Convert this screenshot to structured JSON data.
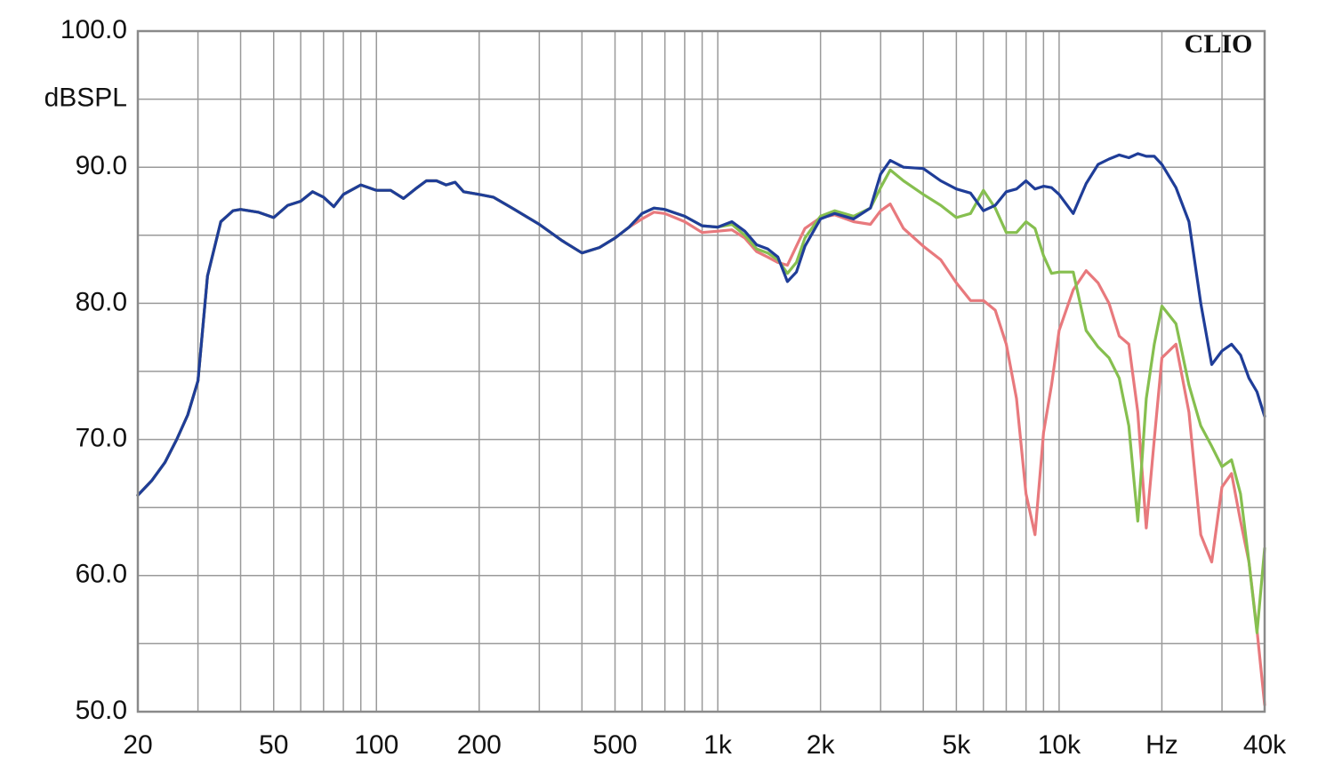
{
  "chart_data": {
    "type": "line",
    "annotation": "CLIO",
    "log_x": true,
    "grid": true,
    "xlim": [
      20,
      40000
    ],
    "xticks": [
      20,
      50,
      100,
      200,
      500,
      {
        "value": 1000,
        "label": "1k"
      },
      {
        "value": 2000,
        "label": "2k"
      },
      {
        "value": 5000,
        "label": "5k"
      },
      {
        "value": 10000,
        "label": "10k"
      },
      {
        "value": 20000,
        "label": "Hz"
      },
      {
        "value": 40000,
        "label": "40k"
      }
    ],
    "xgrid_minor": [
      30,
      40,
      60,
      70,
      80,
      90,
      300,
      400,
      600,
      700,
      800,
      900,
      3000,
      4000,
      6000,
      7000,
      8000,
      9000,
      30000
    ],
    "ylim": [
      50,
      100
    ],
    "yticks": [
      {
        "value": 100,
        "label": "100.0"
      },
      {
        "value": 95,
        "label": "dBSPL"
      },
      {
        "value": 90,
        "label": "90.0"
      },
      {
        "value": 80,
        "label": "80.0"
      },
      {
        "value": 70,
        "label": "70.0"
      },
      {
        "value": 60,
        "label": "60.0"
      },
      {
        "value": 50,
        "label": "50.0"
      }
    ],
    "ygrid_minor": [
      85,
      75,
      65,
      55
    ],
    "x": [
      20,
      22,
      24,
      26,
      28,
      30,
      32,
      35,
      38,
      40,
      45,
      50,
      55,
      60,
      65,
      70,
      75,
      80,
      90,
      100,
      110,
      120,
      130,
      140,
      150,
      160,
      170,
      180,
      200,
      220,
      250,
      300,
      350,
      400,
      450,
      500,
      550,
      600,
      650,
      700,
      800,
      900,
      1000,
      1100,
      1200,
      1300,
      1400,
      1500,
      1600,
      1700,
      1800,
      2000,
      2200,
      2500,
      2800,
      3000,
      3200,
      3500,
      4000,
      4500,
      5000,
      5500,
      6000,
      6500,
      7000,
      7500,
      8000,
      8500,
      9000,
      9500,
      10000,
      11000,
      12000,
      13000,
      14000,
      15000,
      16000,
      17000,
      18000,
      19000,
      20000,
      22000,
      24000,
      26000,
      28000,
      30000,
      32000,
      34000,
      36000,
      38000,
      40000
    ],
    "series": [
      {
        "color": "#e8797d",
        "values": [
          65.9,
          67.0,
          68.3,
          70.0,
          71.8,
          74.3,
          82.0,
          86.0,
          86.8,
          86.9,
          86.7,
          86.3,
          87.2,
          87.5,
          88.2,
          87.8,
          87.1,
          88.0,
          88.7,
          88.3,
          88.3,
          87.7,
          88.4,
          89.0,
          89.0,
          88.7,
          88.9,
          88.2,
          88.0,
          87.8,
          87.0,
          85.8,
          84.6,
          83.7,
          84.1,
          84.8,
          85.6,
          86.2,
          86.7,
          86.6,
          86.0,
          85.2,
          85.3,
          85.4,
          84.8,
          83.8,
          83.4,
          83.0,
          82.8,
          84.2,
          85.5,
          86.3,
          86.5,
          86.0,
          85.8,
          86.8,
          87.3,
          85.5,
          84.2,
          83.2,
          81.5,
          80.2,
          80.2,
          79.5,
          77.0,
          73.0,
          66.0,
          63.0,
          70.5,
          74.0,
          78.0,
          81.0,
          82.4,
          81.5,
          80.0,
          77.6,
          77.0,
          72.0,
          63.5,
          70.0,
          76.0,
          77.0,
          72.0,
          63.0,
          61.0,
          66.5,
          67.5,
          64.0,
          61.0,
          56.0,
          50.5
        ]
      },
      {
        "color": "#86bf4f",
        "values": [
          65.9,
          67.0,
          68.3,
          70.0,
          71.8,
          74.3,
          82.0,
          86.0,
          86.8,
          86.9,
          86.7,
          86.3,
          87.2,
          87.5,
          88.2,
          87.8,
          87.1,
          88.0,
          88.7,
          88.3,
          88.3,
          87.7,
          88.4,
          89.0,
          89.0,
          88.7,
          88.9,
          88.2,
          88.0,
          87.8,
          87.0,
          85.8,
          84.6,
          83.7,
          84.1,
          84.8,
          85.6,
          86.6,
          87.0,
          86.9,
          86.4,
          85.7,
          85.6,
          85.8,
          85.0,
          84.0,
          83.7,
          83.2,
          82.2,
          83.0,
          84.8,
          86.4,
          86.8,
          86.4,
          87.0,
          88.5,
          89.8,
          89.0,
          88.0,
          87.2,
          86.3,
          86.6,
          88.3,
          87.0,
          85.2,
          85.2,
          86.0,
          85.5,
          83.5,
          82.2,
          82.3,
          82.3,
          78.0,
          76.8,
          76.0,
          74.5,
          71.0,
          64.0,
          73.0,
          77.0,
          79.8,
          78.5,
          74.0,
          71.0,
          69.5,
          68.0,
          68.5,
          66.0,
          61.0,
          55.8,
          62.0
        ]
      },
      {
        "color": "#1f3d98",
        "values": [
          65.9,
          67.0,
          68.3,
          70.0,
          71.8,
          74.3,
          82.0,
          86.0,
          86.8,
          86.9,
          86.7,
          86.3,
          87.2,
          87.5,
          88.2,
          87.8,
          87.1,
          88.0,
          88.7,
          88.3,
          88.3,
          87.7,
          88.4,
          89.0,
          89.0,
          88.7,
          88.9,
          88.2,
          88.0,
          87.8,
          87.0,
          85.8,
          84.6,
          83.7,
          84.1,
          84.8,
          85.6,
          86.6,
          87.0,
          86.9,
          86.4,
          85.7,
          85.6,
          86.0,
          85.3,
          84.3,
          84.0,
          83.4,
          81.6,
          82.3,
          84.2,
          86.2,
          86.6,
          86.2,
          87.0,
          89.5,
          90.5,
          90.0,
          89.9,
          89.0,
          88.4,
          88.1,
          86.8,
          87.2,
          88.2,
          88.4,
          89.0,
          88.4,
          88.6,
          88.5,
          88.0,
          86.6,
          88.8,
          90.2,
          90.6,
          90.9,
          90.7,
          91.0,
          90.8,
          90.8,
          90.2,
          88.5,
          86.0,
          80.0,
          75.5,
          76.5,
          77.0,
          76.2,
          74.5,
          73.5,
          71.7
        ]
      }
    ]
  }
}
